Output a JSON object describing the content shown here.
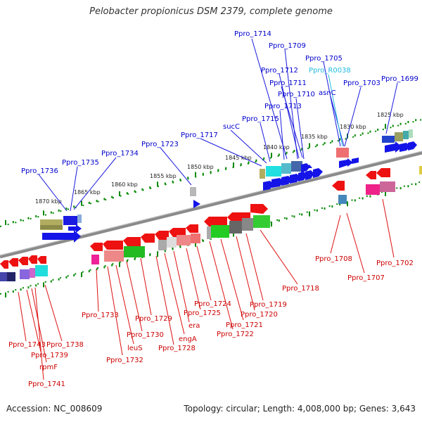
{
  "title": "Pelobacter propionicus DSM 2379, complete genome",
  "footer": {
    "accession": "Accession: NC_008609",
    "topology": "Topology: circular; Length: 4,008,000 bp; Genes: 3,643"
  },
  "colors": {
    "top_label": "#0000cc",
    "top_label_rna": "#22bbdd",
    "bottom_label": "#cc0000",
    "tick": "#008800",
    "backbone": "#808080"
  },
  "kbp_ticks": [
    "1870 kbp",
    "1865 kbp",
    "1860 kbp",
    "1855 kbp",
    "1850 kbp",
    "1845 kbp",
    "1840 kbp",
    "1835 kbp",
    "1830 kbp",
    "1825 kbp"
  ],
  "top_labels": [
    "Ppro_1736",
    "Ppro_1735",
    "Ppro_1734",
    "Ppro_1723",
    "Ppro_1717",
    "sucC",
    "Ppro_1715",
    "Ppro_1714",
    "Ppro_1709",
    "Ppro_1712",
    "Ppro_1711",
    "Ppro_1710",
    "Ppro_1713",
    "Ppro_1705",
    "Ppro_R0038",
    "asnC",
    "Ppro_1703",
    "Ppro_1699"
  ],
  "bottom_labels": [
    "Ppro_1743",
    "Ppro_1739",
    "rpmF",
    "Ppro_1741",
    "Ppro_1738",
    "Ppro_1733",
    "leuS",
    "Ppro_1732",
    "Ppro_1730",
    "Ppro_1729",
    "Ppro_1728",
    "engA",
    "era",
    "Ppro_1725",
    "Ppro_1724",
    "Ppro_1722",
    "Ppro_1721",
    "Ppro_1720",
    "Ppro_1719",
    "Ppro_1718",
    "Ppro_1708",
    "Ppro_1707",
    "Ppro_1702"
  ]
}
